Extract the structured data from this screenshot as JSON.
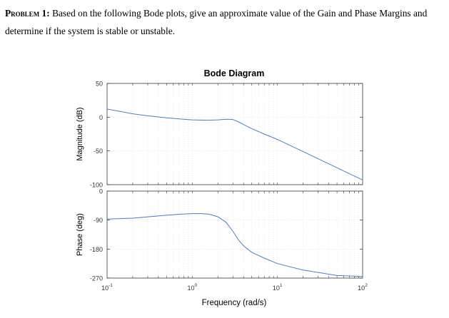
{
  "problem": {
    "label": "Problem",
    "number": "1:",
    "text": "Based on the following Bode plots, give an approximate value of the Gain and Phase Margins and determine if the system is stable or unstable."
  },
  "chart_data": [
    {
      "type": "line",
      "title": "Bode Diagram",
      "xlabel": "Frequency (rad/s)",
      "ylabel": "Magnitude (dB)",
      "xscale": "log",
      "xlim": [
        0.1,
        100
      ],
      "ylim": [
        -100,
        50
      ],
      "yticks": [
        50,
        0,
        -50,
        -100
      ],
      "grid": true,
      "color": "#4a7fc1",
      "x": [
        0.1,
        0.15,
        0.2,
        0.3,
        0.5,
        0.7,
        1.0,
        1.5,
        2.0,
        2.5,
        3.0,
        3.5,
        4.0,
        5.0,
        7.0,
        10,
        20,
        50,
        100
      ],
      "y": [
        12,
        8,
        5,
        2,
        -1,
        -2.5,
        -4,
        -4.5,
        -4,
        -3,
        -3.5,
        -7,
        -11,
        -17,
        -25,
        -33,
        -51,
        -75,
        -93
      ]
    },
    {
      "type": "line",
      "xlabel": "Frequency (rad/s)",
      "ylabel": "Phase (deg)",
      "xscale": "log",
      "xlim": [
        0.1,
        100
      ],
      "ylim": [
        -270,
        0
      ],
      "yticks": [
        0,
        -90,
        -180,
        -270
      ],
      "xticks": [
        {
          "base": "10",
          "exp": "-1"
        },
        {
          "base": "10",
          "exp": "0"
        },
        {
          "base": "10",
          "exp": "1"
        },
        {
          "base": "10",
          "exp": "2"
        }
      ],
      "grid": true,
      "color": "#4a7fc1",
      "x": [
        0.1,
        0.2,
        0.3,
        0.5,
        0.7,
        1.0,
        1.3,
        1.6,
        2.0,
        2.5,
        3.0,
        3.5,
        4.0,
        5.0,
        7.0,
        10,
        20,
        50,
        100
      ],
      "y": [
        -87,
        -84,
        -80,
        -75,
        -72,
        -70,
        -70,
        -72,
        -80,
        -97,
        -125,
        -152,
        -170,
        -190,
        -208,
        -225,
        -245,
        -262,
        -265
      ]
    }
  ]
}
